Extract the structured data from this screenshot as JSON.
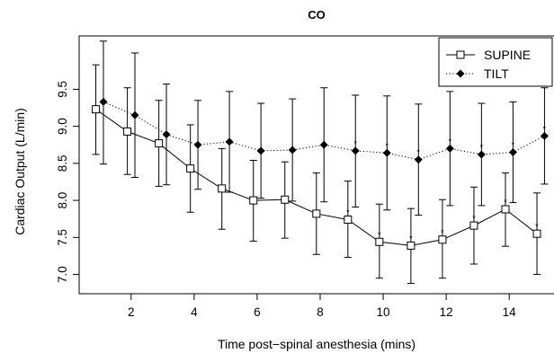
{
  "chart_data": {
    "type": "line",
    "title": "CO",
    "xlabel": "Time post−spinal anesthesia (mins)",
    "ylabel": "Cardiac Output (L/min)",
    "xlim": [
      0.35,
      15.45
    ],
    "ylim": [
      6.74,
      10.22
    ],
    "x_ticks": [
      "2",
      "4",
      "6",
      "8",
      "10",
      "12",
      "14"
    ],
    "y_ticks": [
      "7.0",
      "7.5",
      "8.0",
      "8.5",
      "9.0",
      "9.5"
    ],
    "x_tick_values": [
      2,
      4,
      6,
      8,
      10,
      12,
      14
    ],
    "y_tick_values": [
      7.0,
      7.5,
      8.0,
      8.5,
      9.0,
      9.5
    ],
    "legend_position": "top-right",
    "significance_marker": "*",
    "series": [
      {
        "name": "SUPINE",
        "line_style": "solid",
        "marker": "open-square",
        "x": [
          1,
          2,
          3,
          4,
          5,
          6,
          7,
          8,
          9,
          10,
          11,
          12,
          13,
          14,
          15
        ],
        "values": [
          9.23,
          8.93,
          8.77,
          8.43,
          8.16,
          8.0,
          8.01,
          7.82,
          7.74,
          7.44,
          7.39,
          7.47,
          7.66,
          7.88,
          7.55
        ],
        "upper": [
          9.83,
          9.52,
          9.35,
          9.02,
          8.7,
          8.54,
          8.52,
          8.37,
          8.26,
          7.95,
          7.89,
          8.01,
          8.18,
          8.37,
          8.1
        ],
        "lower": [
          8.62,
          8.35,
          8.19,
          7.84,
          7.61,
          7.45,
          7.49,
          7.27,
          7.23,
          6.95,
          6.88,
          6.95,
          7.14,
          7.38,
          7.0
        ],
        "significant": [
          false,
          false,
          false,
          false,
          false,
          false,
          false,
          false,
          true,
          true,
          true,
          true,
          true,
          true,
          true
        ]
      },
      {
        "name": "TILT",
        "line_style": "dotted",
        "marker": "filled-diamond",
        "x": [
          1,
          2,
          3,
          4,
          5,
          6,
          7,
          8,
          9,
          10,
          11,
          12,
          13,
          14,
          15
        ],
        "values": [
          9.33,
          9.15,
          8.89,
          8.75,
          8.79,
          8.67,
          8.68,
          8.75,
          8.67,
          8.64,
          8.55,
          8.7,
          8.62,
          8.65,
          8.87
        ],
        "upper": [
          10.15,
          9.99,
          9.57,
          9.35,
          9.47,
          9.31,
          9.37,
          9.52,
          9.42,
          9.41,
          9.3,
          9.47,
          9.31,
          9.33,
          9.52
        ],
        "lower": [
          8.49,
          8.31,
          8.21,
          8.15,
          8.11,
          8.03,
          7.99,
          7.98,
          7.91,
          7.87,
          7.8,
          7.93,
          7.93,
          7.97,
          8.22
        ],
        "significant": [
          false,
          false,
          false,
          false,
          false,
          false,
          false,
          false,
          true,
          true,
          true,
          true,
          true,
          true,
          true
        ]
      }
    ]
  }
}
